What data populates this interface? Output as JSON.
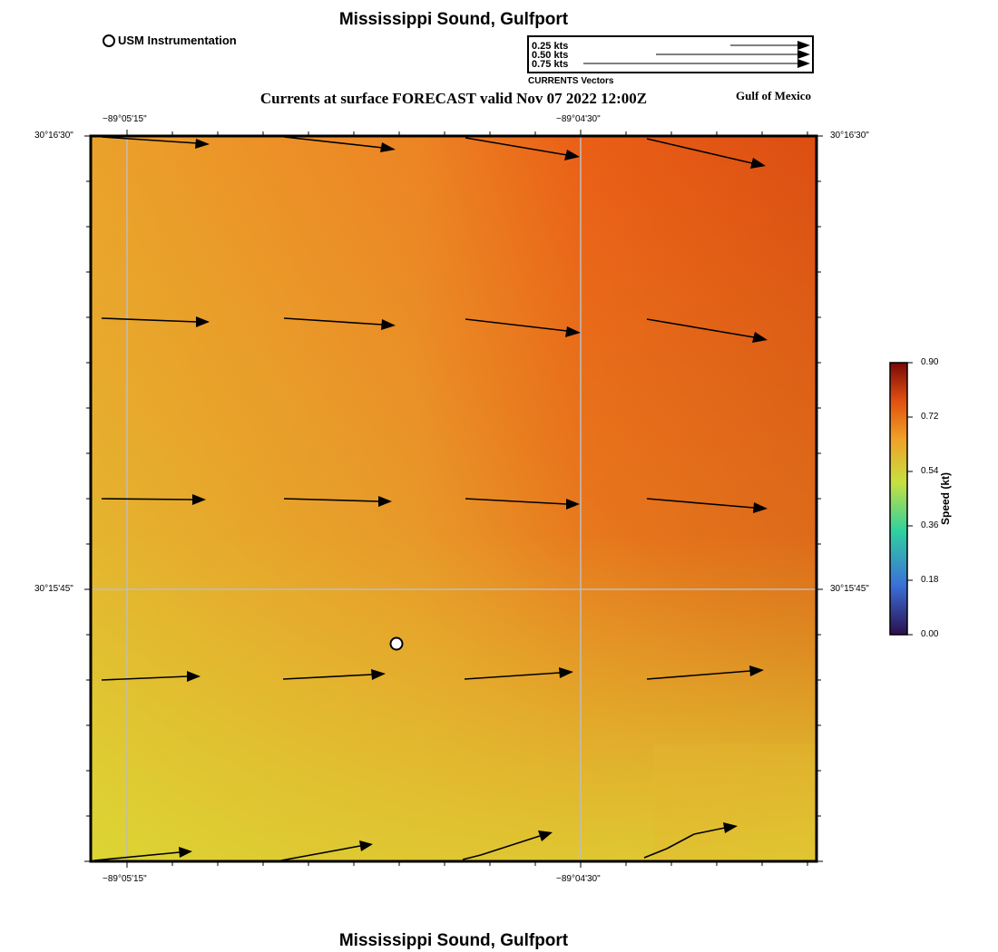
{
  "title": "Mississippi Sound, Gulfport",
  "footer_title": "Mississippi Sound, Gulfport",
  "subtitle": "Currents at surface FORECAST valid Nov 07 2022 12:00Z",
  "region_label": "Gulf of Mexico",
  "legend": {
    "station_label": "USM Instrumentation",
    "vector_caption": "CURRENTS Vectors",
    "vector_scale": [
      {
        "label": "0.25 kts",
        "speed_kt": 0.25
      },
      {
        "label": "0.50 kts",
        "speed_kt": 0.5
      },
      {
        "label": "0.75 kts",
        "speed_kt": 0.75
      }
    ]
  },
  "axes": {
    "lon_ticks": [
      "−89°05'15\"",
      "−89°04'30\""
    ],
    "lat_ticks": [
      "30°16'30\"",
      "30°15'45\""
    ]
  },
  "colorbar": {
    "title": "Speed (kt)",
    "ticks": [
      "0.00",
      "0.18",
      "0.36",
      "0.54",
      "0.72",
      "0.90"
    ],
    "colors": [
      "#2b0f4f",
      "#3a6fd8",
      "#2fd0a0",
      "#c8e040",
      "#f0a028",
      "#e05010",
      "#7a0808"
    ]
  },
  "field_colors": {
    "low_speed": "#dcd534",
    "mid_speed": "#ec9a28",
    "high_speed": "#ea5a14",
    "peak_speed": "#d84e14"
  },
  "station": {
    "name": "USM Instrumentation"
  }
}
